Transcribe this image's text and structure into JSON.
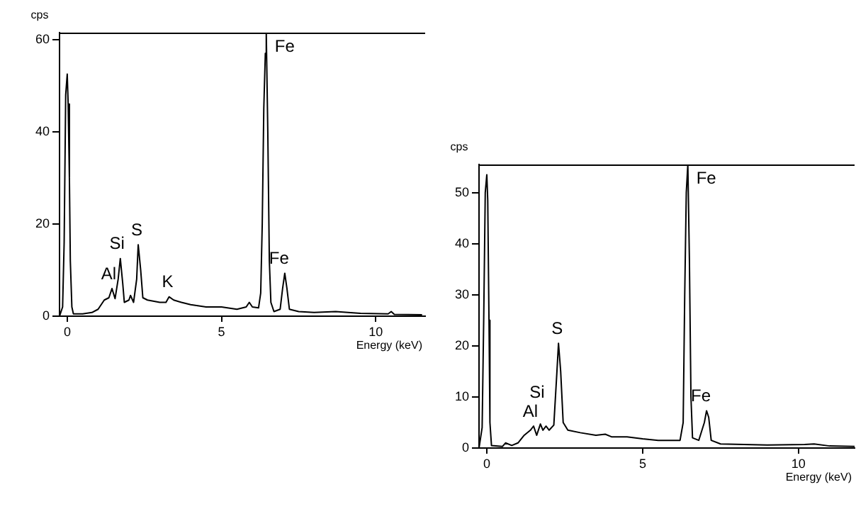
{
  "chart_data": [
    {
      "type": "line",
      "xlabel": "Energy (keV)",
      "ylabel": "cps",
      "color": "#000000",
      "xlim": [
        -0.25,
        11.6
      ],
      "ylim": [
        0,
        61.5
      ],
      "xticks": [
        0,
        5,
        10
      ],
      "yticks": [
        0,
        20,
        40,
        60
      ],
      "x": [
        -0.25,
        -0.15,
        -0.1,
        -0.05,
        0,
        0.03,
        0.07,
        0.1,
        0.15,
        0.2,
        0.5,
        0.8,
        1,
        1.2,
        1.35,
        1.45,
        1.55,
        1.65,
        1.72,
        1.8,
        1.85,
        2,
        2.05,
        2.15,
        2.25,
        2.3,
        2.38,
        2.45,
        2.6,
        3,
        3.2,
        3.3,
        3.45,
        3.7,
        4,
        4.5,
        5,
        5.5,
        5.8,
        5.9,
        6,
        6.2,
        6.27,
        6.32,
        6.37,
        6.42,
        6.45,
        6.5,
        6.55,
        6.6,
        6.7,
        6.9,
        6.98,
        7.05,
        7.12,
        7.2,
        7.5,
        8,
        8.7,
        9.5,
        10.4,
        10.5,
        10.6,
        11.5
      ],
      "values": [
        0,
        2,
        16,
        48,
        52.5,
        46,
        30,
        12,
        2,
        0.5,
        0.5,
        0.8,
        1.5,
        3.5,
        4,
        6,
        3.8,
        8,
        12.5,
        7,
        3,
        3.5,
        4.5,
        3,
        8,
        15.5,
        10,
        4,
        3.5,
        3,
        3,
        4.2,
        3.5,
        3,
        2.5,
        2,
        2,
        1.5,
        2,
        3,
        2,
        1.8,
        5,
        20,
        45,
        57,
        61.5,
        40,
        12,
        3,
        1,
        1.5,
        6,
        9.3,
        6,
        1.5,
        1,
        0.8,
        1,
        0.6,
        0.5,
        1,
        0.4,
        0.3
      ],
      "annotations": [
        {
          "text": "Al",
          "x": 1.45,
          "y": 6
        },
        {
          "text": "Si",
          "x": 1.72,
          "y": 12.5
        },
        {
          "text": "S",
          "x": 2.3,
          "y": 15.5
        },
        {
          "text": "K",
          "x": 3.3,
          "y": 4.2
        },
        {
          "text": "Fe",
          "x": 6.45,
          "y": 61.5
        },
        {
          "text": "Fe",
          "x": 7.05,
          "y": 9.3
        }
      ]
    },
    {
      "type": "line",
      "xlabel": "Energy (keV)",
      "ylabel": "cps",
      "color": "#000000",
      "xlim": [
        -0.25,
        11.8
      ],
      "ylim": [
        0,
        55.5
      ],
      "xticks": [
        0,
        5,
        10
      ],
      "yticks": [
        0,
        10,
        20,
        30,
        40,
        50
      ],
      "x": [
        -0.25,
        -0.15,
        -0.1,
        -0.05,
        0,
        0.03,
        0.07,
        0.1,
        0.15,
        0.5,
        0.6,
        0.8,
        1,
        1.2,
        1.4,
        1.5,
        1.6,
        1.72,
        1.8,
        1.9,
        2,
        2.15,
        2.25,
        2.3,
        2.37,
        2.45,
        2.6,
        3,
        3.5,
        3.8,
        4,
        4.5,
        5,
        5.5,
        6.2,
        6.3,
        6.35,
        6.4,
        6.45,
        6.5,
        6.55,
        6.6,
        6.8,
        6.98,
        7.05,
        7.12,
        7.2,
        7.5,
        9,
        10.2,
        10.5,
        11,
        11.8
      ],
      "values": [
        0,
        4,
        25,
        50,
        53.5,
        48.5,
        25,
        5,
        0.5,
        0.3,
        1,
        0.5,
        1,
        2.5,
        3.5,
        4.3,
        2.5,
        4.7,
        3.5,
        4.3,
        3.5,
        4.5,
        15,
        20.5,
        15,
        5,
        3.5,
        3,
        2.5,
        2.7,
        2.2,
        2.2,
        1.8,
        1.5,
        1.5,
        5,
        30,
        50,
        55.5,
        37,
        10,
        2,
        1.5,
        5,
        7.3,
        6,
        1.5,
        0.8,
        0.6,
        0.7,
        0.8,
        0.4,
        0.3
      ],
      "annotations": [
        {
          "text": "Al",
          "x": 1.5,
          "y": 4.3
        },
        {
          "text": "Si",
          "x": 1.72,
          "y": 4.7
        },
        {
          "text": "S",
          "x": 2.3,
          "y": 20.5
        },
        {
          "text": "Fe",
          "x": 6.45,
          "y": 55.5
        },
        {
          "text": "Fe",
          "x": 7.05,
          "y": 7.3
        }
      ]
    }
  ]
}
